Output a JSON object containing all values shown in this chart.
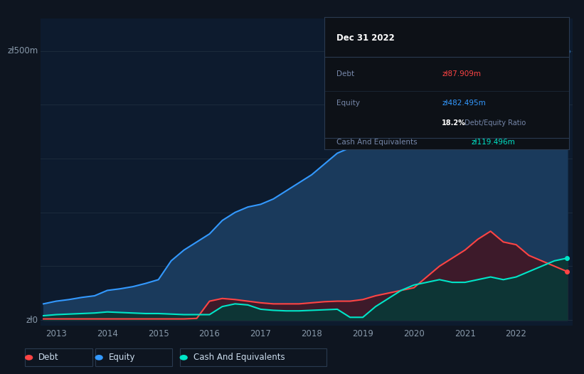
{
  "background_color": "#0e1520",
  "plot_bg_color": "#0d1b2e",
  "ylabel_top": "zł500m",
  "ylabel_zero": "zł0",
  "xlabel_ticks": [
    "2013",
    "2014",
    "2015",
    "2016",
    "2017",
    "2018",
    "2019",
    "2020",
    "2021",
    "2022"
  ],
  "tooltip": {
    "date": "Dec 31 2022",
    "debt_label": "Debt",
    "debt_value": "zł87.909m",
    "equity_label": "Equity",
    "equity_value": "zł482.495m",
    "ratio_pct": "18.2%",
    "ratio_rest": " Debt/Equity Ratio",
    "cash_label": "Cash And Equivalents",
    "cash_value": "zł119.496m"
  },
  "equity_color": "#3399ff",
  "debt_color": "#ff4444",
  "cash_color": "#00e5c8",
  "equity_fill_color": "#1a3a5c",
  "debt_fill_color": "#3d1a2a",
  "cash_fill_color": "#0d3535",
  "grid_color": "#1e2d3d",
  "legend": [
    {
      "label": "Debt",
      "color": "#ff4444"
    },
    {
      "label": "Equity",
      "color": "#3399ff"
    },
    {
      "label": "Cash And Equivalents",
      "color": "#00e5c8"
    }
  ],
  "years": [
    2012.75,
    2013.0,
    2013.25,
    2013.5,
    2013.75,
    2014.0,
    2014.25,
    2014.5,
    2014.75,
    2015.0,
    2015.25,
    2015.5,
    2015.75,
    2016.0,
    2016.25,
    2016.5,
    2016.75,
    2017.0,
    2017.25,
    2017.5,
    2017.75,
    2018.0,
    2018.25,
    2018.5,
    2018.75,
    2019.0,
    2019.25,
    2019.5,
    2019.75,
    2020.0,
    2020.25,
    2020.5,
    2020.75,
    2021.0,
    2021.25,
    2021.5,
    2021.75,
    2022.0,
    2022.25,
    2022.5,
    2022.75,
    2023.0
  ],
  "equity": [
    30,
    35,
    38,
    42,
    45,
    55,
    58,
    62,
    68,
    75,
    110,
    130,
    145,
    160,
    185,
    200,
    210,
    215,
    225,
    240,
    255,
    270,
    290,
    310,
    320,
    340,
    360,
    375,
    385,
    400,
    410,
    415,
    420,
    435,
    445,
    450,
    460,
    460,
    470,
    480,
    490,
    500
  ],
  "debt": [
    2,
    2,
    2,
    2,
    2,
    2,
    2,
    2,
    2,
    2,
    2,
    2,
    3,
    35,
    40,
    38,
    35,
    32,
    30,
    30,
    30,
    32,
    34,
    35,
    35,
    38,
    45,
    50,
    55,
    60,
    80,
    100,
    115,
    130,
    150,
    165,
    145,
    140,
    120,
    110,
    100,
    90
  ],
  "cash": [
    8,
    10,
    11,
    12,
    13,
    15,
    14,
    13,
    12,
    12,
    11,
    10,
    10,
    10,
    25,
    30,
    28,
    20,
    18,
    17,
    17,
    18,
    19,
    20,
    5,
    5,
    25,
    40,
    55,
    65,
    70,
    75,
    70,
    70,
    75,
    80,
    75,
    80,
    90,
    100,
    110,
    115
  ]
}
